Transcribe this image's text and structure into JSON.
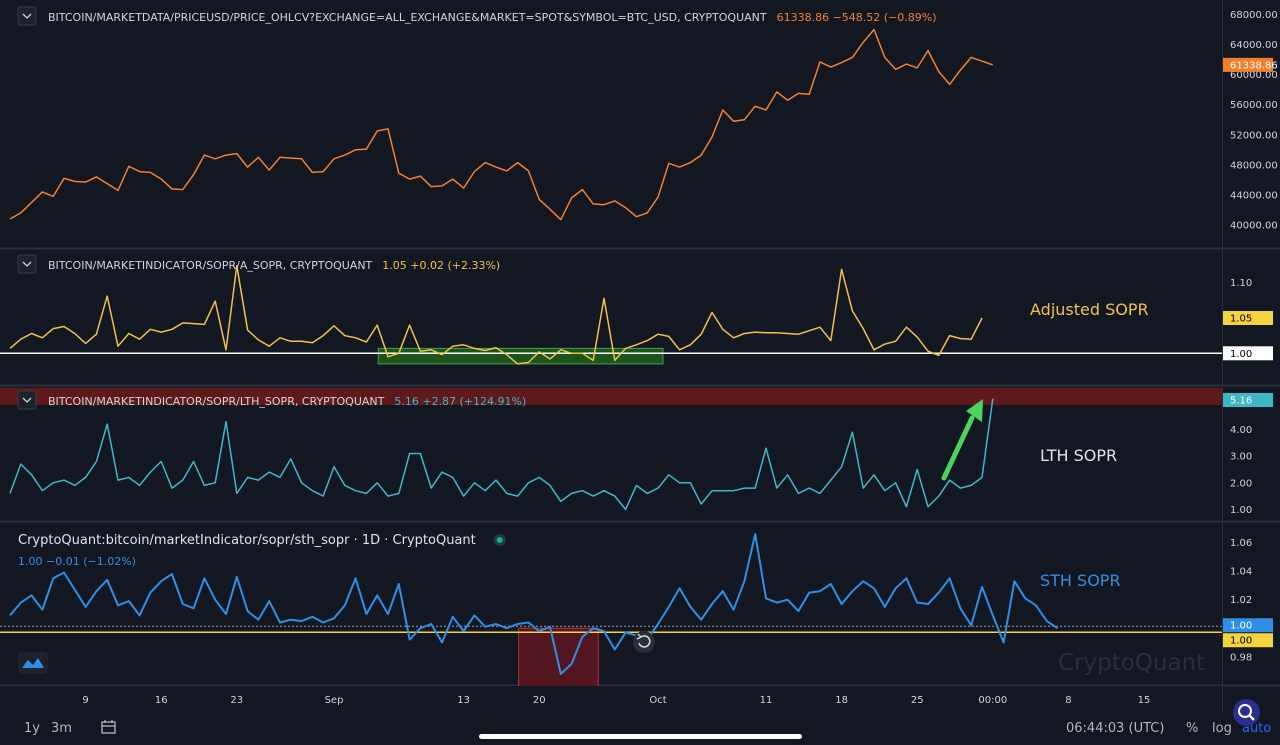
{
  "panes": [
    {
      "id": "price",
      "legend_name": "BITCOIN/MARKETDATA/PRICEUSD/PRICE_OHLCV?EXCHANGE=ALL_EXCHANGE&MARKET=SPOT&SYMBOL=BTC_USD, CRYPTOQUANT",
      "legend_value": "61338.86",
      "legend_change": "−548.52 (−0.89%)",
      "last_label": "61338.86",
      "ticks": [
        "68000.00",
        "64000.00",
        "60000.00",
        "56000.00",
        "52000.00",
        "48000.00",
        "44000.00",
        "40000.00"
      ],
      "color": "#f57f2c"
    },
    {
      "id": "asopr",
      "legend_name": "BITCOIN/MARKETINDICATOR/SOPR/A_SOPR, CRYPTOQUANT",
      "legend_value": "1.05",
      "legend_change": "+0.02 (+2.33%)",
      "annotation": "Adjusted SOPR",
      "last_label": "1.05",
      "ref_label": "1.00",
      "ticks": [
        "1.10"
      ],
      "color": "#f0c04a"
    },
    {
      "id": "lth",
      "legend_name": "BITCOIN/MARKETINDICATOR/SOPR/LTH_SOPR, CRYPTOQUANT",
      "legend_value": "5.16",
      "legend_change": "+2.87 (+124.91%)",
      "annotation": "LTH SOPR",
      "last_label": "5.16",
      "ticks": [
        "4.00",
        "3.00",
        "2.00",
        "1.00"
      ],
      "color": "#3fb7c6"
    },
    {
      "id": "sth",
      "legend_name": "CryptoQuant:bitcoin/marketIndicator/sopr/sth_sopr · 1D · CryptoQuant",
      "legend_value_line": "1.00 −0.01 (−1.02%)",
      "annotation": "STH SOPR",
      "last_label": "1.00",
      "ref_label": "1.00",
      "ticks": [
        "1.06",
        "1.04",
        "1.02",
        "0.98"
      ],
      "watermark": "CryptoQuant",
      "color": "#2f8fe6"
    }
  ],
  "x_axis": {
    "labels": [
      "9",
      "16",
      "23",
      "Sep",
      "13",
      "20",
      "Oct",
      "11",
      "18",
      "25",
      "00:00",
      "8",
      "15"
    ]
  },
  "bottom_bar": {
    "range_1y": "1y",
    "range_3m": "3m",
    "clock": "06:44:03 (UTC)",
    "pct": "%",
    "log": "log",
    "auto": "auto"
  },
  "chart_data": [
    {
      "type": "line",
      "title": "BITCOIN/MARKETDATA/PRICEUSD/PRICE_OHLCV?EXCHANGE=ALL_EXCHANGE&MARKET=SPOT&SYMBOL=BTC_USD, CRYPTOQUANT",
      "x_start": "2021-08-02",
      "x_step_days": 1,
      "ylim": [
        38000,
        69000
      ],
      "values": [
        40800,
        41600,
        43000,
        44400,
        43800,
        46200,
        45800,
        45700,
        46400,
        45500,
        44600,
        47800,
        47100,
        47000,
        46100,
        44800,
        44700,
        46700,
        49300,
        48800,
        49300,
        49500,
        47700,
        49000,
        47300,
        49000,
        48900,
        48800,
        47000,
        47100,
        48800,
        49300,
        50000,
        50100,
        52500,
        52800,
        46900,
        46100,
        46500,
        45100,
        45200,
        46100,
        44900,
        47100,
        48300,
        47700,
        47200,
        48300,
        47200,
        43400,
        42100,
        40700,
        43600,
        44700,
        42800,
        42700,
        43200,
        42300,
        41100,
        41600,
        43700,
        48200,
        47700,
        48300,
        49300,
        51700,
        55300,
        53800,
        54000,
        55800,
        55300,
        57700,
        56600,
        57500,
        57400,
        61700,
        61000,
        61600,
        62300,
        64300,
        66000,
        62300,
        60700,
        61400,
        60900,
        63200,
        60400,
        58700,
        60600,
        62300,
        61800,
        61300
      ],
      "last": 61338.86,
      "change": -548.52,
      "change_pct": -0.89
    },
    {
      "type": "line",
      "title": "BITCOIN/MARKETINDICATOR/SOPR/A_SOPR, CRYPTOQUANT",
      "x_start": "2021-08-02",
      "x_step_days": 1,
      "ylim": [
        0.965,
        1.135
      ],
      "values": [
        1.007,
        1.02,
        1.028,
        1.022,
        1.035,
        1.038,
        1.028,
        1.014,
        1.027,
        1.081,
        1.01,
        1.028,
        1.02,
        1.034,
        1.03,
        1.034,
        1.043,
        1.042,
        1.041,
        1.074,
        1.005,
        1.124,
        1.033,
        1.019,
        1.01,
        1.022,
        1.017,
        1.017,
        1.015,
        1.025,
        1.039,
        1.025,
        1.022,
        1.016,
        1.04,
        0.995,
        1.0,
        1.04,
        1.003,
        1.005,
        0.998,
        1.01,
        1.012,
        1.007,
        1.004,
        1.008,
        0.998,
        0.985,
        0.987,
        1.002,
        0.992,
        1.005,
        1.0,
        1.0,
        0.99,
        1.078,
        0.99,
        1.007,
        1.012,
        1.018,
        1.027,
        1.024,
        1.005,
        1.012,
        1.027,
        1.058,
        1.034,
        1.022,
        1.028,
        1.03,
        1.029,
        1.029,
        1.028,
        1.027,
        1.032,
        1.037,
        1.018,
        1.119,
        1.06,
        1.035,
        1.005,
        1.013,
        1.017,
        1.037,
        1.023,
        1.003,
        0.997,
        1.025,
        1.021,
        1.02,
        1.05
      ],
      "reference_line": 1.0,
      "highlight_box": [
        0.985,
        1.007
      ],
      "annotation": "Adjusted SOPR",
      "last": 1.05,
      "change": 0.02,
      "change_pct": 2.33
    },
    {
      "type": "line",
      "title": "BITCOIN/MARKETINDICATOR/SOPR/LTH_SOPR, CRYPTOQUANT",
      "x_start": "2021-08-02",
      "x_step_days": 1,
      "ylim": [
        0.6,
        5.45
      ],
      "values": [
        1.6,
        2.7,
        2.3,
        1.7,
        2.0,
        2.1,
        1.9,
        2.2,
        2.8,
        4.2,
        2.1,
        2.2,
        1.9,
        2.4,
        2.8,
        1.8,
        2.1,
        2.8,
        1.9,
        2.0,
        4.3,
        1.6,
        2.2,
        2.1,
        2.4,
        2.2,
        2.9,
        2.0,
        1.7,
        1.5,
        2.6,
        1.9,
        1.7,
        1.6,
        2.0,
        1.5,
        1.6,
        3.1,
        3.1,
        1.8,
        2.4,
        2.2,
        1.5,
        2.0,
        1.7,
        2.1,
        1.6,
        1.5,
        2.0,
        2.2,
        1.9,
        1.3,
        1.6,
        1.7,
        1.5,
        1.7,
        1.5,
        1.0,
        1.9,
        1.6,
        1.8,
        2.3,
        2.0,
        2.0,
        1.2,
        1.7,
        1.7,
        1.7,
        1.8,
        1.8,
        3.3,
        1.8,
        2.3,
        1.6,
        1.8,
        1.6,
        2.1,
        2.6,
        3.9,
        1.8,
        2.3,
        1.7,
        2.0,
        1.1,
        2.5,
        1.1,
        1.5,
        2.1,
        1.8,
        1.9,
        2.2,
        5.16
      ],
      "annotation": "LTH SOPR",
      "last": 5.16,
      "change": 2.87,
      "change_pct": 124.91
    },
    {
      "type": "line",
      "title": "CryptoQuant:bitcoin/marketIndicator/sopr/sth_sopr · 1D · CryptoQuant",
      "x_start": "2021-08-02",
      "x_step_days": 1,
      "ylim": [
        0.963,
        1.071
      ],
      "values": [
        1.009,
        1.018,
        1.023,
        1.013,
        1.035,
        1.039,
        1.027,
        1.015,
        1.026,
        1.034,
        1.016,
        1.019,
        1.009,
        1.025,
        1.033,
        1.038,
        1.017,
        1.014,
        1.035,
        1.02,
        1.01,
        1.036,
        1.012,
        1.006,
        1.019,
        1.004,
        1.006,
        1.005,
        1.008,
        1.004,
        1.007,
        1.016,
        1.035,
        1.01,
        1.023,
        1.01,
        1.031,
        0.992,
        1.0,
        1.003,
        0.99,
        1.008,
        0.998,
        1.009,
        1.001,
        1.003,
        1.0,
        1.003,
        1.004,
        0.998,
        1.001,
        0.968,
        0.975,
        0.994,
        1.0,
        0.998,
        0.985,
        0.997,
        0.995,
        0.992,
        1.003,
        1.015,
        1.028,
        1.015,
        1.006,
        1.017,
        1.026,
        1.013,
        1.033,
        1.066,
        1.021,
        1.018,
        1.02,
        1.012,
        1.025,
        1.026,
        1.031,
        1.017,
        1.026,
        1.033,
        1.028,
        1.015,
        1.028,
        1.035,
        1.018,
        1.017,
        1.025,
        1.035,
        1.014,
        1.002,
        1.029,
        1.009,
        0.99,
        1.033,
        1.021,
        1.016,
        1.005,
        1.0
      ],
      "reference_line": 1.0,
      "highlight_box": [
        0.965,
        1.0
      ],
      "annotation": "STH SOPR",
      "last": 1.0,
      "change": -0.01,
      "change_pct": -1.02
    }
  ]
}
